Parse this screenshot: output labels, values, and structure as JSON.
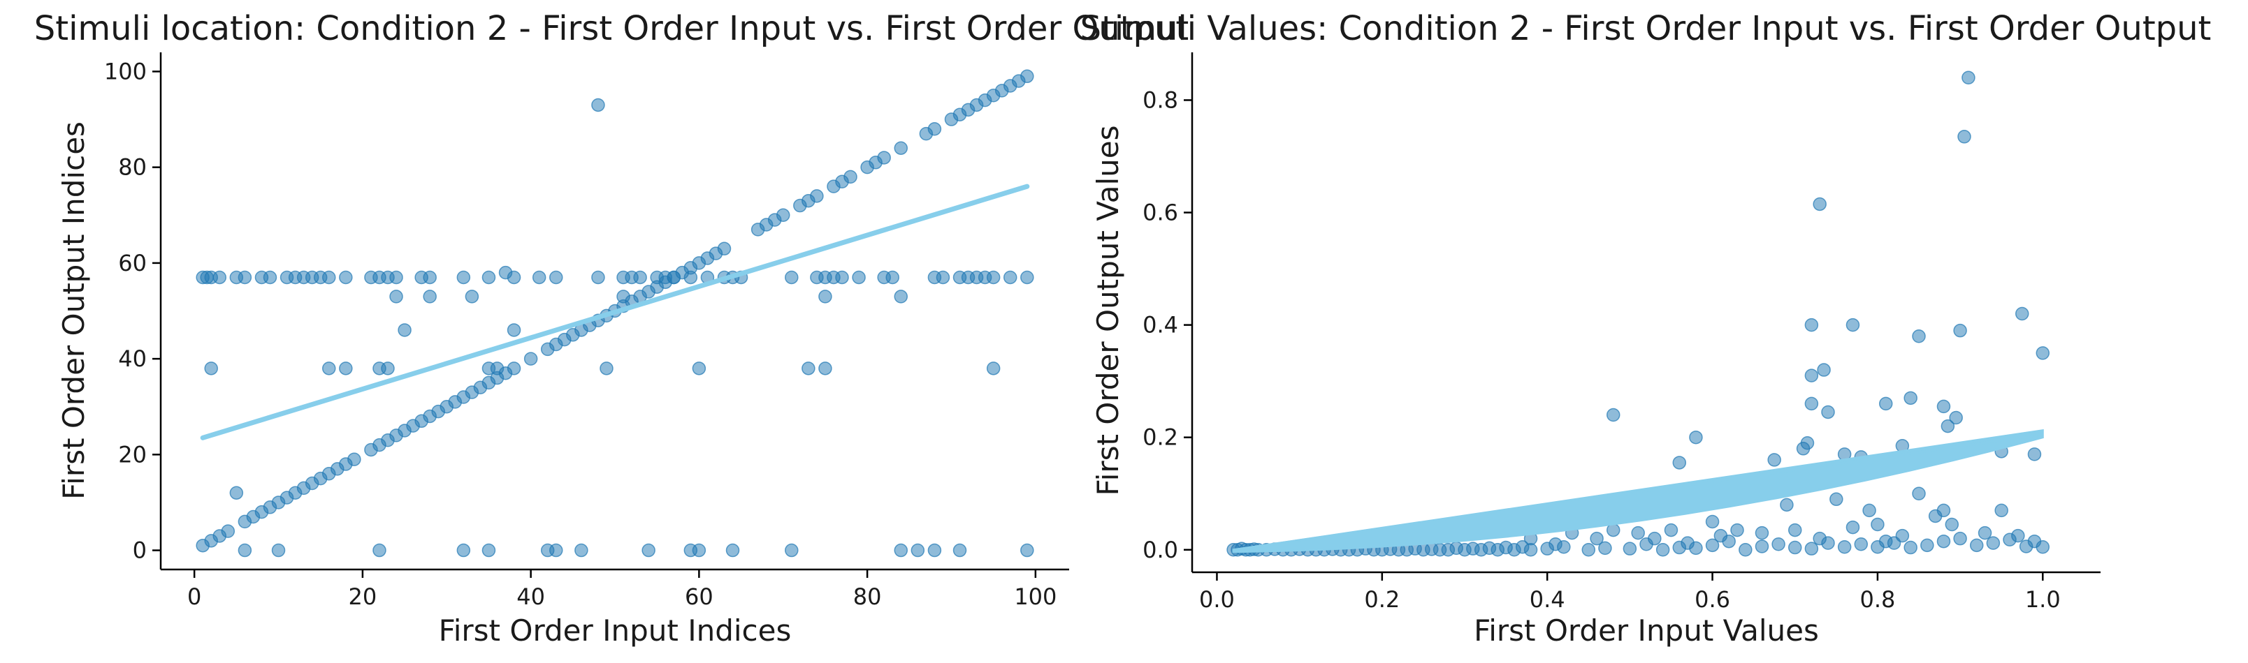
{
  "colors": {
    "points": "#1f77b4",
    "trend": "#87ceeb"
  },
  "chart_data": [
    {
      "type": "scatter",
      "title": "Stimuli location: Condition 2 - First Order Input vs. First Order Output",
      "xlabel": "First Order Input Indices",
      "ylabel": "First Order Output Indices",
      "xlim": [
        -4,
        104
      ],
      "ylim": [
        -4,
        104
      ],
      "xticks": [
        0,
        20,
        40,
        60,
        80,
        100
      ],
      "yticks": [
        0,
        20,
        40,
        60,
        80,
        100
      ],
      "grid": false,
      "point_alpha": 0.5,
      "points": [
        [
          1,
          1
        ],
        [
          2,
          2
        ],
        [
          3,
          3
        ],
        [
          4,
          4
        ],
        [
          6,
          6
        ],
        [
          7,
          7
        ],
        [
          8,
          8
        ],
        [
          9,
          9
        ],
        [
          10,
          10
        ],
        [
          11,
          11
        ],
        [
          12,
          12
        ],
        [
          13,
          13
        ],
        [
          14,
          14
        ],
        [
          15,
          15
        ],
        [
          16,
          16
        ],
        [
          17,
          17
        ],
        [
          18,
          18
        ],
        [
          19,
          19
        ],
        [
          21,
          21
        ],
        [
          22,
          22
        ],
        [
          23,
          23
        ],
        [
          24,
          24
        ],
        [
          25,
          25
        ],
        [
          26,
          26
        ],
        [
          27,
          27
        ],
        [
          28,
          28
        ],
        [
          29,
          29
        ],
        [
          30,
          30
        ],
        [
          31,
          31
        ],
        [
          32,
          32
        ],
        [
          33,
          33
        ],
        [
          34,
          34
        ],
        [
          35,
          35
        ],
        [
          36,
          36
        ],
        [
          37,
          37
        ],
        [
          38,
          38
        ],
        [
          40,
          40
        ],
        [
          42,
          42
        ],
        [
          43,
          43
        ],
        [
          44,
          44
        ],
        [
          45,
          45
        ],
        [
          46,
          46
        ],
        [
          47,
          47
        ],
        [
          48,
          48
        ],
        [
          49,
          49
        ],
        [
          50,
          50
        ],
        [
          51,
          51
        ],
        [
          52,
          52
        ],
        [
          53,
          53
        ],
        [
          54,
          54
        ],
        [
          55,
          55
        ],
        [
          56,
          56
        ],
        [
          57,
          57
        ],
        [
          58,
          58
        ],
        [
          59,
          59
        ],
        [
          60,
          60
        ],
        [
          61,
          61
        ],
        [
          62,
          62
        ],
        [
          63,
          63
        ],
        [
          67,
          67
        ],
        [
          68,
          68
        ],
        [
          69,
          69
        ],
        [
          70,
          70
        ],
        [
          72,
          72
        ],
        [
          73,
          73
        ],
        [
          74,
          74
        ],
        [
          76,
          76
        ],
        [
          77,
          77
        ],
        [
          78,
          78
        ],
        [
          80,
          80
        ],
        [
          81,
          81
        ],
        [
          82,
          82
        ],
        [
          84,
          84
        ],
        [
          87,
          87
        ],
        [
          88,
          88
        ],
        [
          90,
          90
        ],
        [
          91,
          91
        ],
        [
          92,
          92
        ],
        [
          93,
          93
        ],
        [
          94,
          94
        ],
        [
          95,
          95
        ],
        [
          96,
          96
        ],
        [
          97,
          97
        ],
        [
          98,
          98
        ],
        [
          99,
          99
        ],
        [
          1,
          57
        ],
        [
          1.5,
          57
        ],
        [
          2,
          57
        ],
        [
          3,
          57
        ],
        [
          5,
          57
        ],
        [
          6,
          57
        ],
        [
          8,
          57
        ],
        [
          9,
          57
        ],
        [
          11,
          57
        ],
        [
          12,
          57
        ],
        [
          13,
          57
        ],
        [
          14,
          57
        ],
        [
          15,
          57
        ],
        [
          16,
          57
        ],
        [
          18,
          57
        ],
        [
          21,
          57
        ],
        [
          22,
          57
        ],
        [
          23,
          57
        ],
        [
          24,
          57
        ],
        [
          27,
          57
        ],
        [
          28,
          57
        ],
        [
          32,
          57
        ],
        [
          35,
          57
        ],
        [
          37,
          58
        ],
        [
          38,
          57
        ],
        [
          41,
          57
        ],
        [
          43,
          57
        ],
        [
          48,
          57
        ],
        [
          51,
          57
        ],
        [
          52,
          57
        ],
        [
          53,
          57
        ],
        [
          55,
          57
        ],
        [
          56,
          57
        ],
        [
          57,
          57
        ],
        [
          59,
          57
        ],
        [
          61,
          57
        ],
        [
          63,
          57
        ],
        [
          64,
          57
        ],
        [
          65,
          57
        ],
        [
          71,
          57
        ],
        [
          74,
          57
        ],
        [
          75,
          57
        ],
        [
          76,
          57
        ],
        [
          77,
          57
        ],
        [
          79,
          57
        ],
        [
          82,
          57
        ],
        [
          83,
          57
        ],
        [
          88,
          57
        ],
        [
          89,
          57
        ],
        [
          91,
          57
        ],
        [
          92,
          57
        ],
        [
          93,
          57
        ],
        [
          94,
          57
        ],
        [
          95,
          57
        ],
        [
          97,
          57
        ],
        [
          99,
          57
        ],
        [
          2,
          38
        ],
        [
          16,
          38
        ],
        [
          18,
          38
        ],
        [
          22,
          38
        ],
        [
          23,
          38
        ],
        [
          35,
          38
        ],
        [
          36,
          38
        ],
        [
          49,
          38
        ],
        [
          60,
          38
        ],
        [
          73,
          38
        ],
        [
          75,
          38
        ],
        [
          95,
          38
        ],
        [
          24,
          53
        ],
        [
          28,
          53
        ],
        [
          33,
          53
        ],
        [
          51,
          53
        ],
        [
          75,
          53
        ],
        [
          84,
          53
        ],
        [
          38,
          46
        ],
        [
          25,
          46
        ],
        [
          5,
          12
        ],
        [
          48,
          93
        ],
        [
          6,
          0
        ],
        [
          10,
          0
        ],
        [
          22,
          0
        ],
        [
          32,
          0
        ],
        [
          35,
          0
        ],
        [
          42,
          0
        ],
        [
          43,
          0
        ],
        [
          46,
          0
        ],
        [
          54,
          0
        ],
        [
          59,
          0
        ],
        [
          60,
          0
        ],
        [
          64,
          0
        ],
        [
          71,
          0
        ],
        [
          84,
          0
        ],
        [
          86,
          0
        ],
        [
          88,
          0
        ],
        [
          91,
          0
        ],
        [
          99,
          0
        ]
      ],
      "trend_line": {
        "x": [
          1,
          99
        ],
        "y": [
          23.5,
          76
        ]
      }
    },
    {
      "type": "scatter",
      "title": "Stimuli Values: Condition 2 - First Order Input vs. First Order Output",
      "xlabel": "First Order Input Values",
      "ylabel": "First Order Output Values",
      "xlim": [
        -0.03,
        1.07
      ],
      "ylim": [
        -0.04,
        0.885
      ],
      "xticks": [
        0.0,
        0.2,
        0.4,
        0.6,
        0.8,
        1.0
      ],
      "yticks": [
        0.0,
        0.2,
        0.4,
        0.6,
        0.8
      ],
      "grid": false,
      "point_alpha": 0.5,
      "points": [
        [
          0.02,
          0
        ],
        [
          0.025,
          0
        ],
        [
          0.03,
          0.002
        ],
        [
          0.035,
          0
        ],
        [
          0.04,
          0
        ],
        [
          0.045,
          0.001
        ],
        [
          0.05,
          0
        ],
        [
          0.06,
          0
        ],
        [
          0.07,
          0.001
        ],
        [
          0.08,
          0
        ],
        [
          0.09,
          0
        ],
        [
          0.1,
          0.001
        ],
        [
          0.11,
          0
        ],
        [
          0.12,
          0
        ],
        [
          0.13,
          0
        ],
        [
          0.14,
          0.001
        ],
        [
          0.15,
          0
        ],
        [
          0.16,
          0
        ],
        [
          0.17,
          0
        ],
        [
          0.18,
          0.002
        ],
        [
          0.19,
          0
        ],
        [
          0.2,
          0
        ],
        [
          0.21,
          0.001
        ],
        [
          0.22,
          0
        ],
        [
          0.23,
          0
        ],
        [
          0.24,
          0.002
        ],
        [
          0.25,
          0
        ],
        [
          0.26,
          0.001
        ],
        [
          0.27,
          0
        ],
        [
          0.28,
          0
        ],
        [
          0.29,
          0.003
        ],
        [
          0.3,
          0
        ],
        [
          0.31,
          0.002
        ],
        [
          0.32,
          0
        ],
        [
          0.33,
          0.003
        ],
        [
          0.34,
          0
        ],
        [
          0.35,
          0.004
        ],
        [
          0.36,
          0
        ],
        [
          0.37,
          0.005
        ],
        [
          0.38,
          0
        ],
        [
          0.4,
          0.002
        ],
        [
          0.42,
          0.005
        ],
        [
          0.45,
          0
        ],
        [
          0.47,
          0.003
        ],
        [
          0.5,
          0.002
        ],
        [
          0.52,
          0.01
        ],
        [
          0.54,
          0
        ],
        [
          0.56,
          0.004
        ],
        [
          0.57,
          0.012
        ],
        [
          0.58,
          0.003
        ],
        [
          0.6,
          0.008
        ],
        [
          0.62,
          0.015
        ],
        [
          0.64,
          0
        ],
        [
          0.66,
          0.006
        ],
        [
          0.68,
          0.01
        ],
        [
          0.7,
          0.004
        ],
        [
          0.72,
          0.002
        ],
        [
          0.74,
          0.012
        ],
        [
          0.76,
          0.005
        ],
        [
          0.78,
          0.01
        ],
        [
          0.8,
          0.005
        ],
        [
          0.82,
          0.012
        ],
        [
          0.84,
          0.004
        ],
        [
          0.86,
          0.008
        ],
        [
          0.88,
          0.015
        ],
        [
          0.9,
          0.02
        ],
        [
          0.92,
          0.008
        ],
        [
          0.94,
          0.012
        ],
        [
          0.96,
          0.018
        ],
        [
          0.98,
          0.006
        ],
        [
          1.0,
          0.005
        ],
        [
          0.38,
          0.02
        ],
        [
          0.41,
          0.01
        ],
        [
          0.43,
          0.03
        ],
        [
          0.46,
          0.02
        ],
        [
          0.48,
          0.035
        ],
        [
          0.51,
          0.03
        ],
        [
          0.53,
          0.02
        ],
        [
          0.55,
          0.035
        ],
        [
          0.6,
          0.05
        ],
        [
          0.61,
          0.025
        ],
        [
          0.63,
          0.035
        ],
        [
          0.66,
          0.03
        ],
        [
          0.69,
          0.08
        ],
        [
          0.7,
          0.035
        ],
        [
          0.73,
          0.02
        ],
        [
          0.77,
          0.04
        ],
        [
          0.79,
          0.07
        ],
        [
          0.8,
          0.045
        ],
        [
          0.81,
          0.015
        ],
        [
          0.83,
          0.025
        ],
        [
          0.85,
          0.1
        ],
        [
          0.87,
          0.06
        ],
        [
          0.88,
          0.07
        ],
        [
          0.89,
          0.045
        ],
        [
          0.93,
          0.03
        ],
        [
          0.95,
          0.07
        ],
        [
          0.97,
          0.025
        ],
        [
          0.99,
          0.015
        ],
        [
          0.48,
          0.24
        ],
        [
          0.56,
          0.155
        ],
        [
          0.58,
          0.2
        ],
        [
          0.6,
          0.115
        ],
        [
          0.675,
          0.16
        ],
        [
          0.71,
          0.18
        ],
        [
          0.715,
          0.19
        ],
        [
          0.72,
          0.26
        ],
        [
          0.72,
          0.31
        ],
        [
          0.72,
          0.4
        ],
        [
          0.73,
          0.615
        ],
        [
          0.735,
          0.32
        ],
        [
          0.74,
          0.245
        ],
        [
          0.76,
          0.17
        ],
        [
          0.77,
          0.4
        ],
        [
          0.78,
          0.165
        ],
        [
          0.75,
          0.09
        ],
        [
          0.81,
          0.26
        ],
        [
          0.83,
          0.185
        ],
        [
          0.84,
          0.27
        ],
        [
          0.85,
          0.38
        ],
        [
          0.88,
          0.255
        ],
        [
          0.885,
          0.22
        ],
        [
          0.895,
          0.235
        ],
        [
          0.9,
          0.39
        ],
        [
          0.905,
          0.735
        ],
        [
          0.91,
          0.84
        ],
        [
          0.95,
          0.175
        ],
        [
          0.975,
          0.42
        ],
        [
          0.99,
          0.17
        ],
        [
          1.0,
          0.35
        ]
      ],
      "trend_curve": {
        "x": [
          0.02,
          1.0
        ],
        "y": [
          0,
          0.205
        ]
      }
    }
  ]
}
